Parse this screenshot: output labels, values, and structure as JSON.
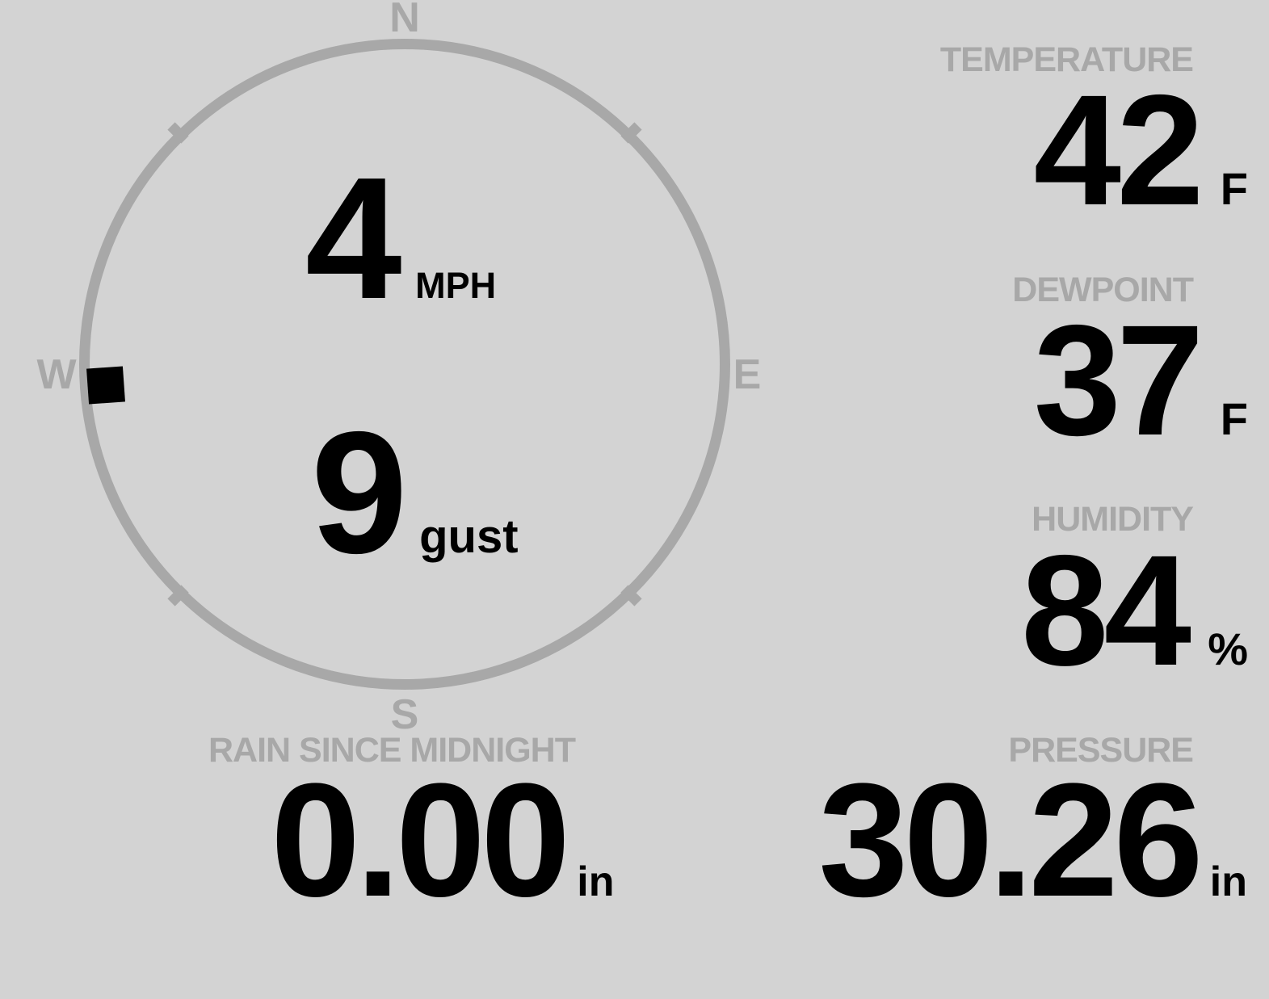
{
  "display": {
    "background": "#d3d3d3",
    "muted": "#a8a8a8",
    "ink": "#000000"
  },
  "wind": {
    "speed": "4",
    "speed_unit": "MPH",
    "gust": "9",
    "gust_label": "gust",
    "direction_degrees": 266,
    "compass_labels": {
      "n": "N",
      "e": "E",
      "s": "S",
      "w": "W"
    }
  },
  "temperature": {
    "label": "TEMPERATURE",
    "value": "42",
    "unit": "F"
  },
  "dewpoint": {
    "label": "DEWPOINT",
    "value": "37",
    "unit": "F"
  },
  "humidity": {
    "label": "HUMIDITY",
    "value": "84",
    "unit": "%"
  },
  "rain": {
    "label": "RAIN SINCE MIDNIGHT",
    "value": "0.00",
    "unit": "in"
  },
  "pressure": {
    "label": "PRESSURE",
    "value": "30.26",
    "unit": "in"
  }
}
